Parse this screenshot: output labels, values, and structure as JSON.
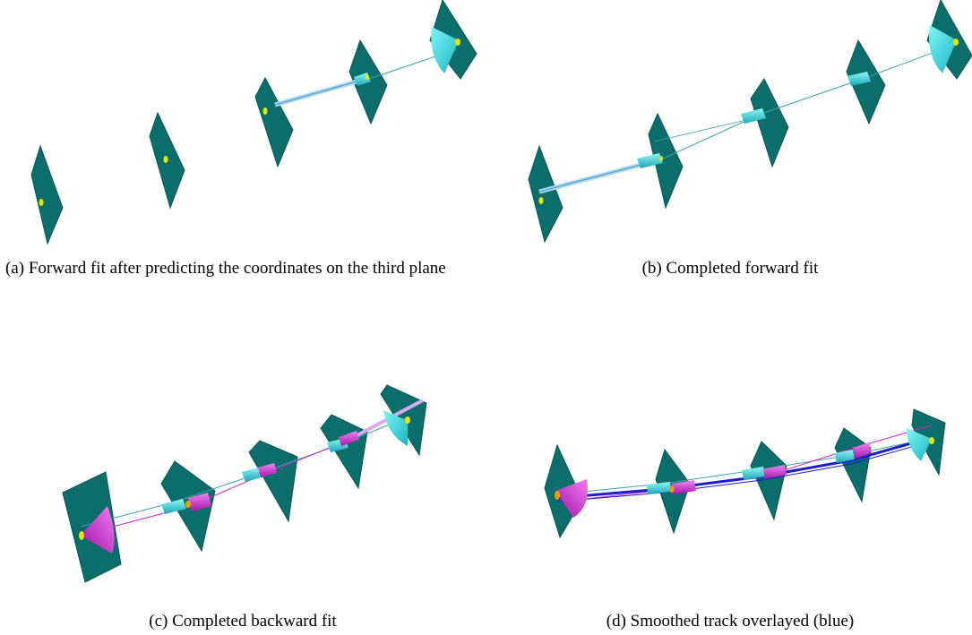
{
  "captions": {
    "a": "(a) Forward fit after predicting the coordinates on the third plane",
    "b": "(b) Completed forward fit",
    "c": "(c) Completed backward fit",
    "d": "(d) Smoothed track overlayed (blue)"
  },
  "colors": {
    "plane": "#0b6e6a",
    "plane_edge": "#095955",
    "hit": "#e6e600",
    "forward": "#2bd6d6",
    "backward": "#cc22cc",
    "smoothed": "#1c1ccf",
    "track_line": "#3aa7a0",
    "predict": "#a9d8f0"
  }
}
